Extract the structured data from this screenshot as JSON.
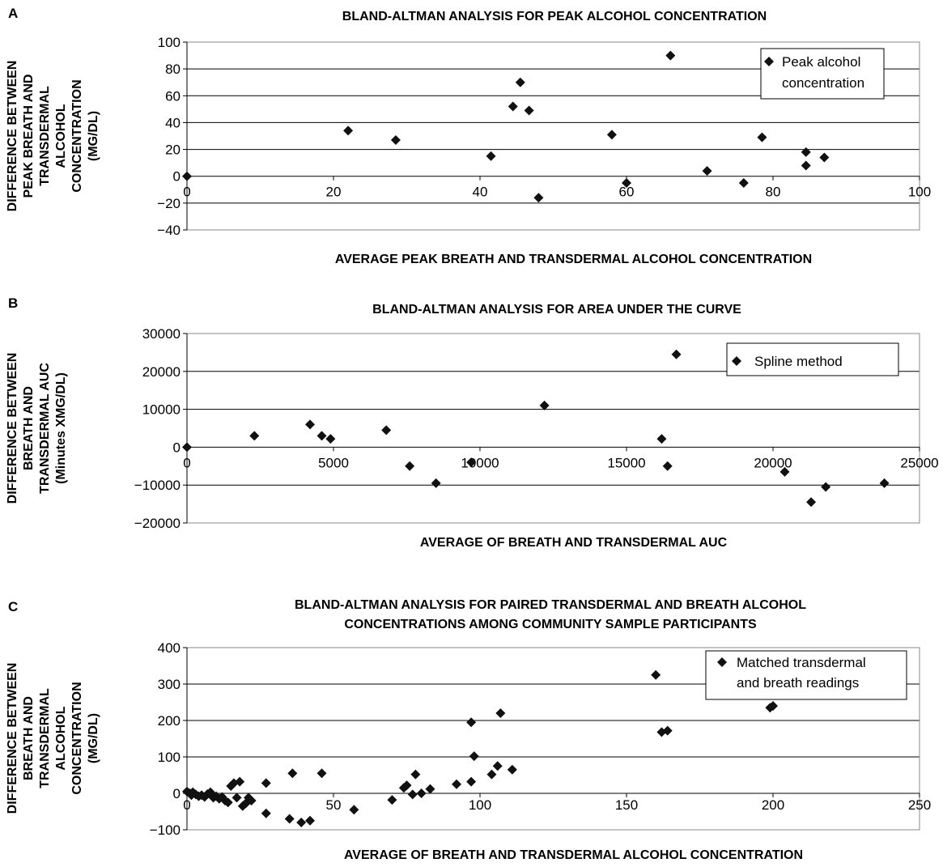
{
  "chart_data": [
    {
      "type": "scatter",
      "panel_label": "A",
      "title": [
        "BLAND-ALTMAN ANALYSIS FOR PEAK ALCOHOL CONCENTRATION"
      ],
      "xlabel": "AVERAGE PEAK BREATH AND TRANSDERMAL ALCOHOL CONCENTRATION",
      "ylabel": [
        "DIFFERENCE BETWEEN",
        "PEAK BREATH AND",
        "TRANSDERMAL",
        "ALCOHOL",
        "CONCENTRATION",
        "(MG/DL)"
      ],
      "xlim": [
        0,
        100
      ],
      "ylim": [
        -40,
        100
      ],
      "xticks": [
        0,
        20,
        40,
        60,
        80,
        100
      ],
      "yticks": [
        -40,
        -20,
        0,
        20,
        40,
        60,
        80,
        100
      ],
      "ytick_labels": [
        "−40",
        "−20",
        "0",
        "20",
        "40",
        "60",
        "80",
        "100"
      ],
      "grid": true,
      "legend_position": "top-right",
      "series": [
        {
          "name": [
            "Peak alcohol",
            "concentration"
          ],
          "points": [
            [
              0,
              0
            ],
            [
              22,
              34
            ],
            [
              28.5,
              27
            ],
            [
              41.5,
              15
            ],
            [
              44.5,
              52
            ],
            [
              45.5,
              70
            ],
            [
              46.7,
              49
            ],
            [
              48,
              -16
            ],
            [
              58,
              31
            ],
            [
              60,
              -5
            ],
            [
              66,
              90
            ],
            [
              71,
              4
            ],
            [
              76,
              -5
            ],
            [
              78.5,
              29
            ],
            [
              84.5,
              18
            ],
            [
              84.5,
              8
            ],
            [
              87,
              14
            ]
          ]
        }
      ]
    },
    {
      "type": "scatter",
      "panel_label": "B",
      "title": [
        "BLAND-ALTMAN ANALYSIS FOR AREA UNDER THE CURVE"
      ],
      "xlabel": "AVERAGE OF BREATH AND TRANSDERMAL AUC",
      "ylabel": [
        "DIFFERENCE BETWEEN",
        "BREATH AND",
        "TRANSDERMAL AUC",
        "(Minutes XMG/DL)"
      ],
      "xlim": [
        0,
        25000
      ],
      "ylim": [
        -20000,
        30000
      ],
      "xticks": [
        0,
        5000,
        10000,
        15000,
        20000,
        25000
      ],
      "yticks": [
        -20000,
        -10000,
        0,
        10000,
        20000,
        30000
      ],
      "ytick_labels": [
        "−20000",
        "−10000",
        "0",
        "10000",
        "20000",
        "30000"
      ],
      "grid": true,
      "legend_position": "top-right",
      "series": [
        {
          "name": [
            "Spline method"
          ],
          "points": [
            [
              0,
              0
            ],
            [
              2300,
              3000
            ],
            [
              4200,
              6000
            ],
            [
              4600,
              3000
            ],
            [
              4900,
              2200
            ],
            [
              6800,
              4500
            ],
            [
              7600,
              -5000
            ],
            [
              8500,
              -9500
            ],
            [
              9700,
              -4000
            ],
            [
              12200,
              11000
            ],
            [
              16200,
              2200
            ],
            [
              16400,
              -5000
            ],
            [
              16700,
              24500
            ],
            [
              20400,
              -6500
            ],
            [
              21300,
              -14500
            ],
            [
              21800,
              -10500
            ],
            [
              23800,
              -9500
            ]
          ]
        }
      ]
    },
    {
      "type": "scatter",
      "panel_label": "C",
      "title": [
        "BLAND-ALTMAN ANALYSIS FOR PAIRED TRANSDERMAL AND BREATH ALCOHOL",
        "CONCENTRATIONS AMONG COMMUNITY SAMPLE PARTICIPANTS"
      ],
      "xlabel": "AVERAGE OF BREATH AND TRANSDERMAL ALCOHOL CONCENTRATION",
      "ylabel": [
        "DIFFERENCE BETWEEN",
        "BREATH AND",
        "TRANSDERMAL",
        "ALCOHOL",
        "CONCENTRATION",
        "(MG/DL)"
      ],
      "xlim": [
        0,
        250
      ],
      "ylim": [
        -100,
        400
      ],
      "xticks": [
        0,
        50,
        100,
        150,
        200,
        250
      ],
      "yticks": [
        -100,
        0,
        100,
        200,
        300,
        400
      ],
      "ytick_labels": [
        "−100",
        "0",
        "100",
        "200",
        "300",
        "400"
      ],
      "grid": true,
      "legend_position": "top-right",
      "series": [
        {
          "name": [
            "Matched transdermal",
            "and breath readings"
          ],
          "points": [
            [
              0,
              5
            ],
            [
              1,
              0
            ],
            [
              1.5,
              -5
            ],
            [
              2,
              3
            ],
            [
              3,
              -3
            ],
            [
              4,
              -8
            ],
            [
              5,
              -5
            ],
            [
              6,
              -10
            ],
            [
              7,
              -2
            ],
            [
              8,
              3
            ],
            [
              9,
              -12
            ],
            [
              10,
              -8
            ],
            [
              11,
              -15
            ],
            [
              12,
              -10
            ],
            [
              13,
              -20
            ],
            [
              14,
              -25
            ],
            [
              15,
              20
            ],
            [
              16,
              28
            ],
            [
              17,
              -12
            ],
            [
              18,
              32
            ],
            [
              19,
              -35
            ],
            [
              20,
              -28
            ],
            [
              21,
              -12
            ],
            [
              22,
              -20
            ],
            [
              27,
              28
            ],
            [
              27,
              -55
            ],
            [
              35,
              -70
            ],
            [
              36,
              55
            ],
            [
              39,
              -80
            ],
            [
              42,
              -75
            ],
            [
              46,
              55
            ],
            [
              57,
              -45
            ],
            [
              70,
              -18
            ],
            [
              74,
              15
            ],
            [
              75,
              22
            ],
            [
              77,
              -3
            ],
            [
              78,
              52
            ],
            [
              80,
              0
            ],
            [
              83,
              12
            ],
            [
              92,
              25
            ],
            [
              97,
              32
            ],
            [
              97,
              195
            ],
            [
              98,
              102
            ],
            [
              104,
              52
            ],
            [
              106,
              75
            ],
            [
              107,
              220
            ],
            [
              111,
              65
            ],
            [
              160,
              325
            ],
            [
              162,
              168
            ],
            [
              164,
              172
            ],
            [
              199,
              235
            ],
            [
              200,
              240
            ]
          ]
        }
      ]
    }
  ]
}
